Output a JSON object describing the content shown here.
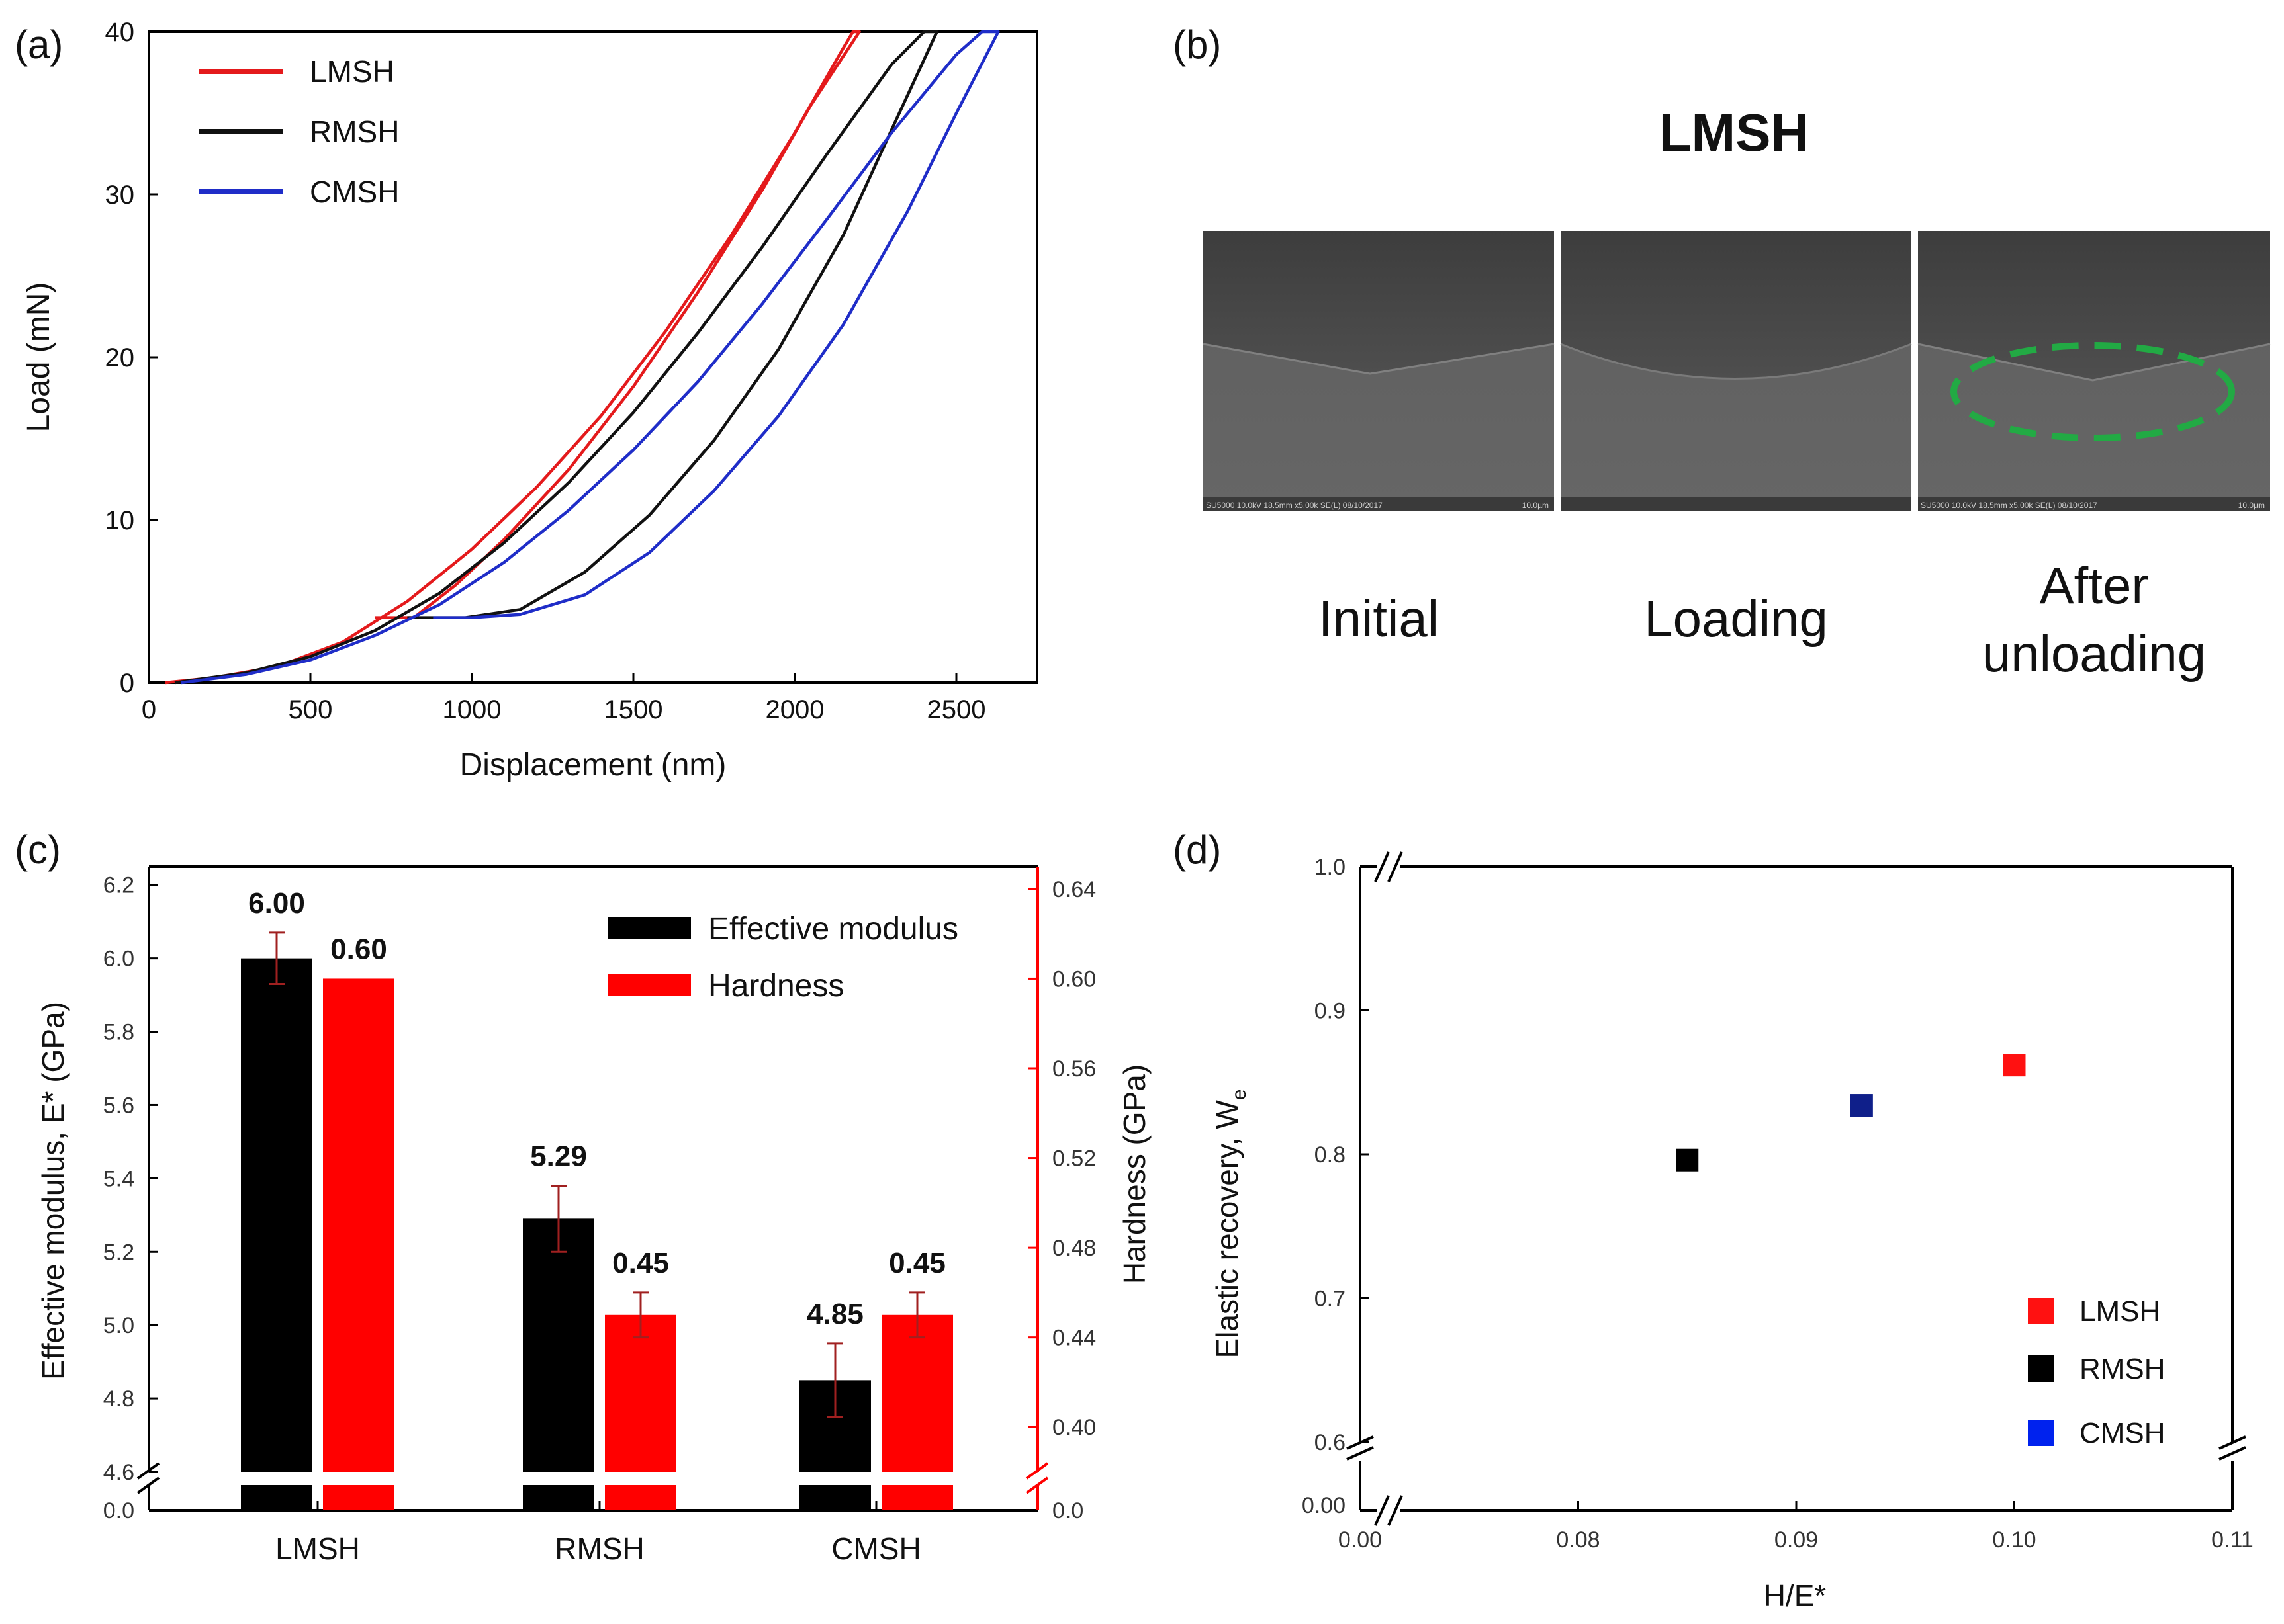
{
  "chart_data": [
    {
      "panel": "(a)",
      "type": "line",
      "xlabel": "Displacement (nm)",
      "ylabel": "Load (mN)",
      "xlim": [
        0,
        2750
      ],
      "ylim": [
        0,
        40
      ],
      "xticks": [
        0,
        500,
        1000,
        1500,
        2000,
        2500
      ],
      "yticks": [
        0,
        10,
        20,
        30,
        40
      ],
      "xtick_labels": [
        "0",
        "500",
        "1000",
        "1500",
        "2000",
        "2500"
      ],
      "ytick_labels": [
        "0",
        "10",
        "20",
        "30",
        "40"
      ],
      "legend": "top-left",
      "series": [
        {
          "name": "LMSH",
          "color": "#e41a1c",
          "loading": [
            [
              50,
              0
            ],
            [
              200,
              0.3
            ],
            [
              400,
              1.0
            ],
            [
              600,
              2.5
            ],
            [
              800,
              5.0
            ],
            [
              1000,
              8.2
            ],
            [
              1200,
              12.0
            ],
            [
              1400,
              16.4
            ],
            [
              1600,
              21.6
            ],
            [
              1800,
              27.4
            ],
            [
              2000,
              33.8
            ],
            [
              2150,
              39.0
            ],
            [
              2180,
              40
            ]
          ],
          "unloading": [
            [
              2200,
              40
            ],
            [
              2050,
              35.5
            ],
            [
              1900,
              30.3
            ],
            [
              1700,
              24.0
            ],
            [
              1500,
              18.2
            ],
            [
              1300,
              13.1
            ],
            [
              1100,
              8.8
            ],
            [
              950,
              6.0
            ],
            [
              820,
              4.0
            ],
            [
              700,
              4.0
            ]
          ]
        },
        {
          "name": "RMSH",
          "color": "#111111",
          "loading": [
            [
              80,
              0
            ],
            [
              300,
              0.6
            ],
            [
              500,
              1.6
            ],
            [
              700,
              3.2
            ],
            [
              900,
              5.5
            ],
            [
              1100,
              8.6
            ],
            [
              1300,
              12.3
            ],
            [
              1500,
              16.6
            ],
            [
              1700,
              21.5
            ],
            [
              1900,
              26.8
            ],
            [
              2100,
              32.5
            ],
            [
              2300,
              38.0
            ],
            [
              2400,
              40
            ]
          ],
          "unloading": [
            [
              2440,
              40
            ],
            [
              2300,
              34.0
            ],
            [
              2150,
              27.5
            ],
            [
              1950,
              20.5
            ],
            [
              1750,
              14.9
            ],
            [
              1550,
              10.3
            ],
            [
              1350,
              6.8
            ],
            [
              1150,
              4.5
            ],
            [
              980,
              4.0
            ],
            [
              800,
              4.0
            ]
          ]
        },
        {
          "name": "CMSH",
          "color": "#1f2dc8",
          "loading": [
            [
              100,
              0
            ],
            [
              300,
              0.5
            ],
            [
              500,
              1.4
            ],
            [
              700,
              2.9
            ],
            [
              900,
              4.8
            ],
            [
              1100,
              7.4
            ],
            [
              1300,
              10.6
            ],
            [
              1500,
              14.3
            ],
            [
              1700,
              18.5
            ],
            [
              1900,
              23.3
            ],
            [
              2100,
              28.5
            ],
            [
              2300,
              33.8
            ],
            [
              2500,
              38.6
            ],
            [
              2580,
              40
            ]
          ],
          "unloading": [
            [
              2630,
              40
            ],
            [
              2500,
              35.0
            ],
            [
              2350,
              29.0
            ],
            [
              2150,
              22.0
            ],
            [
              1950,
              16.4
            ],
            [
              1750,
              11.8
            ],
            [
              1550,
              8.0
            ],
            [
              1350,
              5.4
            ],
            [
              1150,
              4.2
            ],
            [
              1000,
              4.0
            ],
            [
              880,
              4.0
            ]
          ]
        }
      ]
    },
    {
      "panel": "(c)",
      "type": "bar",
      "categories": [
        "LMSH",
        "RMSH",
        "CMSH"
      ],
      "ylabel": "Effective modulus, E* (GPa)",
      "y2label": "Hardness (GPa)",
      "ylim": [
        4.6,
        6.25
      ],
      "y2lim": [
        0.38,
        0.65
      ],
      "yticks": [
        4.6,
        4.8,
        5.0,
        5.2,
        5.4,
        5.6,
        5.8,
        6.0,
        6.2
      ],
      "ytick_labels": [
        "4.6",
        "4.8",
        "5.0",
        "5.2",
        "5.4",
        "5.6",
        "5.8",
        "6.0",
        "6.2"
      ],
      "y2ticks": [
        0.4,
        0.44,
        0.48,
        0.52,
        0.56,
        0.6,
        0.64
      ],
      "y2tick_labels": [
        "0.40",
        "0.44",
        "0.48",
        "0.52",
        "0.56",
        "0.60",
        "0.64"
      ],
      "break_label_left": "0.0",
      "break_label_right": "0.0",
      "legend": "top-right",
      "series": [
        {
          "name": "Effective modulus",
          "axis": "left",
          "color": "#000000",
          "values": [
            6.0,
            5.29,
            4.85
          ],
          "errors": [
            0.07,
            0.09,
            0.1
          ],
          "labels": [
            "6.00",
            "5.29",
            "4.85"
          ]
        },
        {
          "name": "Hardness",
          "axis": "right",
          "color": "#ff0000",
          "values": [
            0.6,
            0.45,
            0.45
          ],
          "errors": [
            0.0,
            0.01,
            0.01
          ],
          "labels": [
            "0.60",
            "0.45",
            "0.45"
          ]
        }
      ]
    },
    {
      "panel": "(d)",
      "type": "scatter",
      "xlabel": "H/E*",
      "ylabel": "Elastic recovery, W",
      "ylabel_sub": "e",
      "xlim": [
        0.07,
        0.11
      ],
      "ylim": [
        0.6,
        1.0
      ],
      "xticks": [
        0.08,
        0.09,
        0.1,
        0.11
      ],
      "xtick_labels": [
        "0.08",
        "0.09",
        "0.10",
        "0.11"
      ],
      "yticks": [
        0.6,
        0.7,
        0.8,
        0.9,
        1.0
      ],
      "ytick_labels": [
        "0.6",
        "0.7",
        "0.8",
        "0.9",
        "1.0"
      ],
      "x_break_label": "0.00",
      "y_break_label": "0.00",
      "legend": "bottom-right",
      "points": [
        {
          "name": "LMSH",
          "x": 0.1,
          "y": 0.862,
          "color": "#ff1111"
        },
        {
          "name": "RMSH",
          "x": 0.085,
          "y": 0.796,
          "color": "#000000"
        },
        {
          "name": "CMSH",
          "x": 0.093,
          "y": 0.834,
          "color": "#0f1f8a"
        }
      ],
      "legend_entries": [
        {
          "name": "LMSH",
          "color": "#ff1111"
        },
        {
          "name": "RMSH",
          "color": "#000000"
        },
        {
          "name": "CMSH",
          "color": "#0022ee"
        }
      ]
    }
  ],
  "panels": {
    "a_label": "(a)",
    "b_label": "(b)",
    "c_label": "(c)",
    "d_label": "(d)",
    "b": {
      "title": "LMSH",
      "captions": [
        "Initial",
        "Loading",
        "After",
        "unloading"
      ],
      "sem_text": "SU5000 10.0kV 18.5mm x5.00k SE(L) 08/10/2017",
      "sem_scale": "10.0µm",
      "highlight_color": "#22aa44"
    }
  }
}
